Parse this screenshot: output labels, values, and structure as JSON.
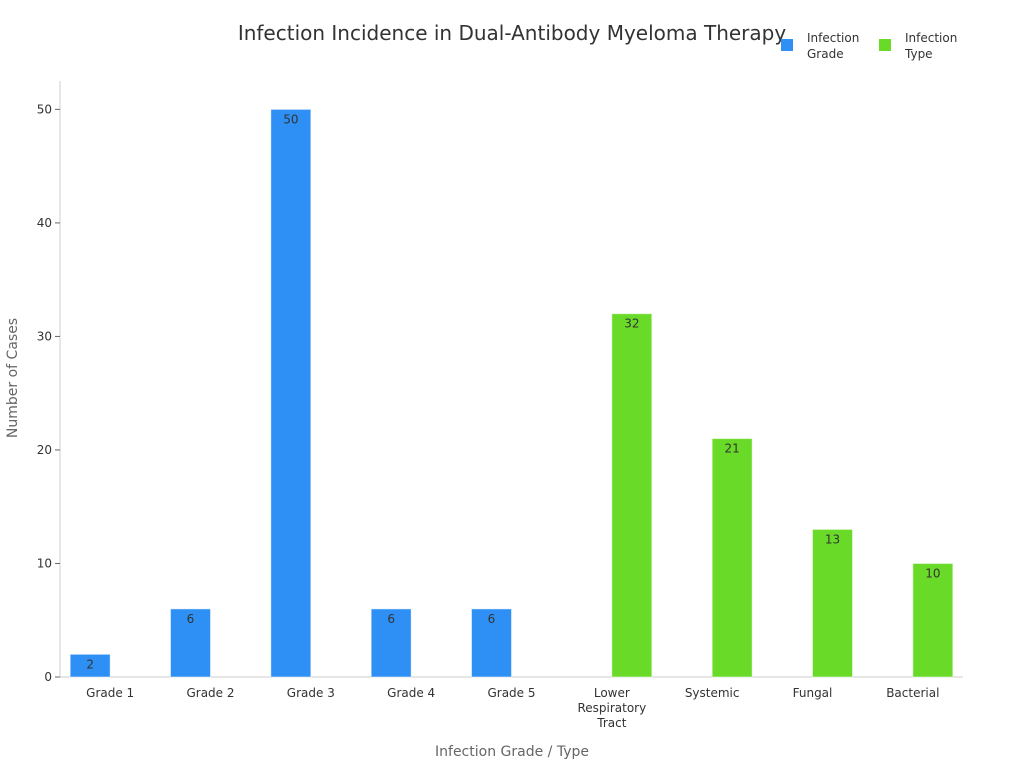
{
  "chart_data": {
    "type": "bar",
    "title": "Infection Incidence in Dual-Antibody Myeloma Therapy",
    "xlabel": "Infection Grade / Type",
    "ylabel": "Number of Cases",
    "ylim": [
      0,
      52.5
    ],
    "yticks": [
      0,
      10,
      20,
      30,
      40,
      50
    ],
    "categories": [
      "Grade 1",
      "Grade 2",
      "Grade 3",
      "Grade 4",
      "Grade 5",
      "Lower Respiratory Tract",
      "Systemic",
      "Fungal",
      "Bacterial"
    ],
    "category_lines": [
      [
        "Grade 1"
      ],
      [
        "Grade 2"
      ],
      [
        "Grade 3"
      ],
      [
        "Grade 4"
      ],
      [
        "Grade 5"
      ],
      [
        "Lower",
        "Respiratory",
        "Tract"
      ],
      [
        "Systemic"
      ],
      [
        "Fungal"
      ],
      [
        "Bacterial"
      ]
    ],
    "series": [
      {
        "name": "Infection Grade",
        "legend_lines": [
          "Infection",
          "Grade"
        ],
        "color": "#2e90f5",
        "values": [
          2,
          6,
          50,
          6,
          6,
          null,
          null,
          null,
          null
        ]
      },
      {
        "name": "Infection Type",
        "legend_lines": [
          "Infection",
          "Type"
        ],
        "color": "#68da27",
        "values": [
          null,
          null,
          null,
          null,
          null,
          32,
          21,
          13,
          10
        ]
      }
    ],
    "legend": "top-right",
    "grid": false
  }
}
